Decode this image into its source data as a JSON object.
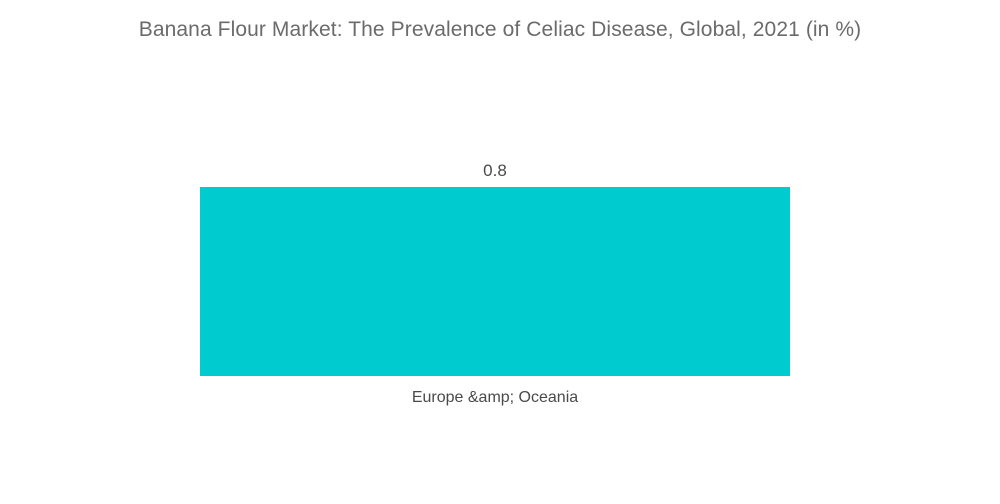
{
  "chart_data": {
    "type": "bar",
    "title": "Banana Flour Market: The Prevalence of Celiac Disease, Global, 2021 (in %)",
    "xlabel": "",
    "ylabel": "",
    "categories": [
      "Europe &amp; Oceania"
    ],
    "values": [
      0.8
    ],
    "data_labels": [
      "0.8"
    ],
    "ylim": [
      0,
      0.8
    ],
    "grid": false,
    "legend": "none",
    "bar_color": "#00cccf"
  }
}
